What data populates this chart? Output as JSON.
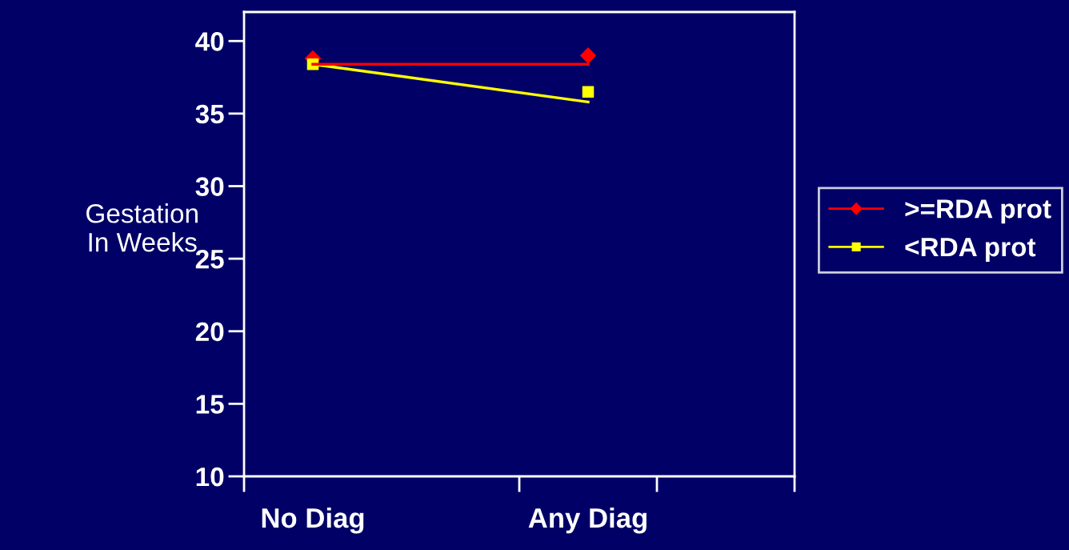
{
  "chart_data": {
    "type": "line",
    "categories": [
      "No Diag",
      "Any Diag"
    ],
    "ylabel": "Gestation\nIn Weeks",
    "ylim": [
      10,
      42
    ],
    "yticks": [
      10,
      15,
      20,
      25,
      30,
      35,
      40
    ],
    "grid": false,
    "legend": "right",
    "series": [
      {
        "name": ">=RDA prot",
        "type": "scatter",
        "color": "#ff0000",
        "marker": "diamond",
        "values": [
          38.8,
          39.0
        ]
      },
      {
        "name": "<RDA prot",
        "type": "scatter",
        "color": "#ffff00",
        "marker": "square",
        "values": [
          38.4,
          36.5
        ]
      },
      {
        "color": "#ffff00",
        "marker": "none",
        "values": [
          38.4,
          35.8
        ]
      },
      {
        "color": "#ff0000",
        "marker": "none",
        "values": [
          38.4,
          38.4
        ]
      }
    ]
  }
}
